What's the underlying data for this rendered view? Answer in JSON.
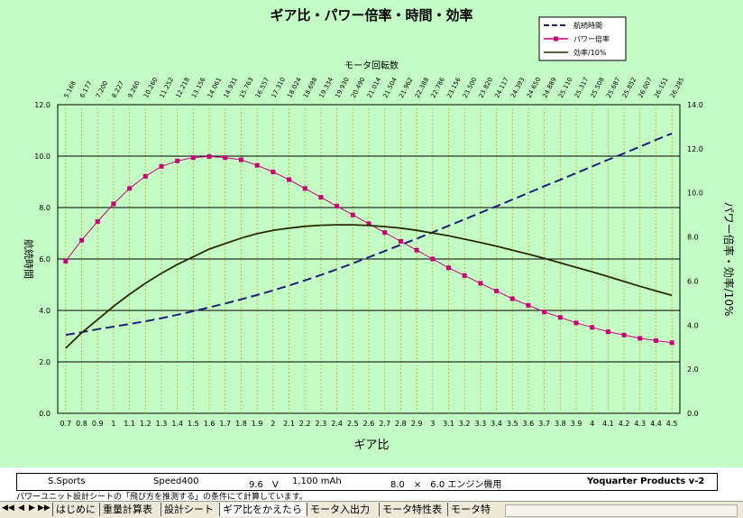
{
  "chart_data": {
    "type": "line",
    "title": "ギア比・パワー倍率・時間・効率",
    "xlabel": "ギア比",
    "ylabel_left": "航続時間",
    "ylabel_right": "パワー倍率・効率/10%",
    "top_axis_title": "モータ回転数",
    "x_ticks": [
      "0.7",
      "0.8",
      "0.9",
      "1",
      "1.1",
      "1.2",
      "1.3",
      "1.4",
      "1.5",
      "1.6",
      "1.7",
      "1.8",
      "1.9",
      "2",
      "2.1",
      "2.2",
      "2.3",
      "2.4",
      "2.5",
      "2.6",
      "2.7",
      "2.8",
      "2.9",
      "3",
      "3.1",
      "3.2",
      "3.3",
      "3.4",
      "3.5",
      "3.6",
      "3.7",
      "3.8",
      "3.9",
      "4",
      "4.1",
      "4.2",
      "4.3",
      "4.4",
      "4.5"
    ],
    "top_ticks": [
      "5.168",
      "6.177",
      "7.200",
      "8.227",
      "9.260",
      "10.260",
      "11.252",
      "12.218",
      "13.156",
      "14.061",
      "14.931",
      "15.763",
      "16.557",
      "17.310",
      "18.024",
      "18.698",
      "19.334",
      "19.930",
      "20.490",
      "21.014",
      "21.504",
      "21.962",
      "22.388",
      "22.786",
      "23.156",
      "23.500",
      "23.820",
      "24.117",
      "24.393",
      "24.650",
      "24.889",
      "25.110",
      "25.317",
      "25.508",
      "25.687",
      "25.852",
      "26.007",
      "26.151",
      "26.285"
    ],
    "y_left": {
      "min": 0,
      "max": 12,
      "ticks": [
        "0.0",
        "2.0",
        "4.0",
        "6.0",
        "8.0",
        "10.0",
        "12.0"
      ]
    },
    "y_right": {
      "min": 0,
      "max": 14,
      "ticks": [
        "0.0",
        "2.0",
        "4.0",
        "6.0",
        "8.0",
        "10.0",
        "12.0",
        "14.0"
      ]
    },
    "legend_position": "top-right",
    "grid": true,
    "series": [
      {
        "name": "航続時間",
        "axis": "left",
        "color": "#1f1f7a",
        "style": "dashed",
        "values": [
          3.05,
          3.15,
          3.27,
          3.37,
          3.47,
          3.58,
          3.7,
          3.83,
          3.97,
          4.12,
          4.27,
          4.43,
          4.6,
          4.78,
          4.97,
          5.17,
          5.38,
          5.6,
          5.83,
          6.07,
          6.31,
          6.55,
          6.79,
          7.04,
          7.29,
          7.54,
          7.8,
          8.05,
          8.31,
          8.57,
          8.83,
          9.08,
          9.34,
          9.6,
          9.86,
          10.11,
          10.37,
          10.63,
          10.88
        ]
      },
      {
        "name": "パワー倍率",
        "axis": "right",
        "color": "#cc0077",
        "marker": "square",
        "values": [
          6.9,
          7.85,
          8.7,
          9.5,
          10.2,
          10.75,
          11.2,
          11.45,
          11.6,
          11.65,
          11.6,
          11.5,
          11.25,
          10.95,
          10.6,
          10.2,
          9.8,
          9.4,
          9.0,
          8.6,
          8.2,
          7.8,
          7.4,
          7.0,
          6.6,
          6.25,
          5.9,
          5.55,
          5.2,
          4.9,
          4.6,
          4.35,
          4.1,
          3.9,
          3.7,
          3.55,
          3.4,
          3.3,
          3.2
        ]
      },
      {
        "name": "効率/10%",
        "axis": "right",
        "color": "#2a2a00",
        "style": "solid",
        "values": [
          2.95,
          3.65,
          4.25,
          4.85,
          5.4,
          5.9,
          6.35,
          6.75,
          7.1,
          7.45,
          7.7,
          7.95,
          8.15,
          8.3,
          8.4,
          8.48,
          8.53,
          8.55,
          8.55,
          8.52,
          8.47,
          8.4,
          8.3,
          8.18,
          8.05,
          7.9,
          7.75,
          7.58,
          7.4,
          7.22,
          7.03,
          6.83,
          6.62,
          6.42,
          6.2,
          5.98,
          5.76,
          5.55,
          5.35
        ]
      }
    ]
  },
  "status": {
    "model": "S.Sports",
    "motor": "Speed400",
    "voltage": "9.6　V",
    "capacity": "1,100 mAh",
    "prop": "8.0　×　6.0  エンジン機用",
    "brand": "Yoquarter Products v-2"
  },
  "note": "パワーユニット設計シートの「飛び方を推測する」の条件にて計算しています。",
  "sheet_tabs": {
    "nav": [
      "◀◀",
      "◀",
      "▶",
      "▶▶"
    ],
    "tabs": [
      {
        "label": "はじめに",
        "active": false
      },
      {
        "label": "重量計算表",
        "active": false
      },
      {
        "label": "設計シート",
        "active": false
      },
      {
        "label": "ギア比をかえたら",
        "active": true
      },
      {
        "label": "モータ入出力",
        "active": false
      },
      {
        "label": "モータ特性表",
        "active": false
      },
      {
        "label": "モータ特",
        "active": false
      }
    ]
  }
}
